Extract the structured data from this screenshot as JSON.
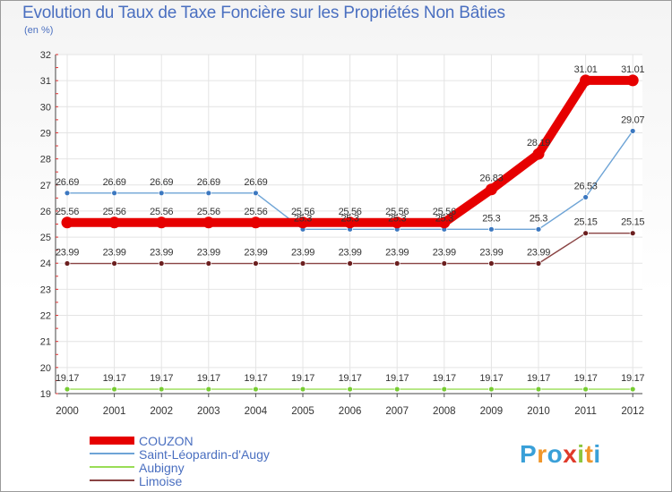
{
  "title": "Evolution du Taux de Taxe Foncière sur les Propriétés Non Bâties",
  "unit_label": "(en %)",
  "logo": {
    "text": "Proxiti",
    "letters": [
      {
        "ch": "P",
        "color": "#3aa0d8"
      },
      {
        "ch": "r",
        "color": "#f0962a"
      },
      {
        "ch": "o",
        "color": "#3aa0d8"
      },
      {
        "ch": "x",
        "color": "#e03a2a"
      },
      {
        "ch": "i",
        "color": "#8cc63e"
      },
      {
        "ch": "t",
        "color": "#f0962a"
      },
      {
        "ch": "i",
        "color": "#3aa0d8"
      }
    ]
  },
  "chart_data": {
    "type": "line",
    "title": "Evolution du Taux de Taxe Foncière sur les Propriétés Non Bâties",
    "ylabel": "(en %)",
    "xlabel": "",
    "ylim": [
      19,
      32
    ],
    "yticks": [
      "19",
      "20",
      "21",
      "22",
      "23",
      "24",
      "25",
      "26",
      "27",
      "28",
      "29",
      "30",
      "31",
      "32"
    ],
    "categories": [
      "2000",
      "2001",
      "2002",
      "2003",
      "2004",
      "2005",
      "2006",
      "2007",
      "2008",
      "2009",
      "2010",
      "2011",
      "2012"
    ],
    "series": [
      {
        "name": "COUZON",
        "color": "#e60000",
        "style": "thick",
        "values": [
          25.56,
          25.56,
          25.56,
          25.56,
          25.56,
          25.56,
          25.56,
          25.56,
          25.56,
          26.83,
          28.19,
          31.01,
          31.01
        ],
        "labels": [
          "25.56",
          "25.56",
          "25.56",
          "25.56",
          "25.56",
          "25.56",
          "25.56",
          "25.56",
          "25.56",
          "26.83",
          "28.19",
          "31.01",
          "31.01"
        ]
      },
      {
        "name": "Saint-Léopardin-d'Augy",
        "color": "#6ea4d6",
        "marker": "#3c78c0",
        "style": "thin",
        "values": [
          26.69,
          26.69,
          26.69,
          26.69,
          26.69,
          25.3,
          25.3,
          25.3,
          25.3,
          25.3,
          25.3,
          26.53,
          29.07
        ],
        "labels": [
          "26.69",
          "26.69",
          "26.69",
          "26.69",
          "26.69",
          "25.3",
          "25.3",
          "25.3",
          "25.3",
          "25.3",
          "25.3",
          "26.53",
          "29.07"
        ]
      },
      {
        "name": "Aubigny",
        "color": "#99dd55",
        "marker": "#77cc33",
        "style": "thin",
        "values": [
          19.17,
          19.17,
          19.17,
          19.17,
          19.17,
          19.17,
          19.17,
          19.17,
          19.17,
          19.17,
          19.17,
          19.17,
          19.17
        ],
        "labels": [
          "19.17",
          "19.17",
          "19.17",
          "19.17",
          "19.17",
          "19.17",
          "19.17",
          "19.17",
          "19.17",
          "19.17",
          "19.17",
          "19.17",
          "19.17"
        ]
      },
      {
        "name": "Limoise",
        "color": "#8a4444",
        "marker": "#6b1f1f",
        "style": "thin",
        "values": [
          23.99,
          23.99,
          23.99,
          23.99,
          23.99,
          23.99,
          23.99,
          23.99,
          23.99,
          23.99,
          23.99,
          25.15,
          25.15
        ],
        "labels": [
          "23.99",
          "23.99",
          "23.99",
          "23.99",
          "23.99",
          "23.99",
          "23.99",
          "23.99",
          "23.99",
          "23.99",
          "23.99",
          "25.15",
          "25.15"
        ]
      }
    ],
    "grid": true,
    "legend": "bottom-left"
  }
}
